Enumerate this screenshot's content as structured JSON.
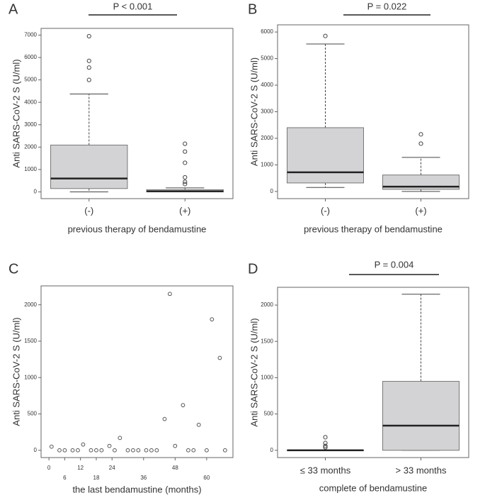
{
  "chart_data": [
    {
      "type": "box",
      "panel_label": "A",
      "annotation": "P < 0.001",
      "ylabel": "Anti  SARS-CoV-2 S (U/ml)",
      "xlabel": "previous therapy of bendamustine",
      "categories": [
        "(-)",
        "(+)"
      ],
      "color": "#d3d3d6",
      "boxes": [
        {
          "min": 0,
          "q1": 150,
          "median": 600,
          "q3": 2090,
          "max": 4370,
          "outliers": [
            6950,
            5850,
            5550,
            5000
          ]
        },
        {
          "min": 0,
          "q1": 0,
          "median": 30,
          "q3": 100,
          "max": 180,
          "outliers": [
            2150,
            1800,
            1300,
            650,
            450,
            350
          ]
        }
      ],
      "ylim": [
        -300,
        7300
      ],
      "yticks": [
        0,
        1000,
        2000,
        3000,
        4000,
        5000,
        6000,
        7000
      ]
    },
    {
      "type": "box",
      "panel_label": "B",
      "annotation": "P = 0.022",
      "ylabel": "Anti  SARS-CoV-2 S (U/ml)",
      "xlabel": "previous therapy of bendamustine",
      "categories": [
        "(-)",
        "(+)"
      ],
      "color": "#d3d3d6",
      "boxes": [
        {
          "min": 150,
          "q1": 320,
          "median": 720,
          "q3": 2400,
          "max": 5550,
          "outliers": [
            5850
          ]
        },
        {
          "min": 0,
          "q1": 80,
          "median": 180,
          "q3": 620,
          "max": 1280,
          "outliers": [
            2150,
            1800
          ]
        }
      ],
      "ylim": [
        -270,
        6270
      ],
      "yticks": [
        0,
        1000,
        2000,
        3000,
        4000,
        5000,
        6000
      ]
    },
    {
      "type": "scatter",
      "panel_label": "C",
      "ylabel": "Anti  SARS-CoV-2 S (U/ml)",
      "xlabel": "the last bendamustine (months)",
      "x": [
        1,
        4,
        6,
        9,
        11,
        13,
        16,
        18,
        20,
        23,
        25,
        27,
        30,
        32,
        34,
        37,
        39,
        41,
        44,
        46,
        48,
        51,
        53,
        55,
        57,
        60,
        62,
        65,
        67
      ],
      "values": [
        50,
        0,
        0,
        0,
        0,
        80,
        0,
        0,
        0,
        60,
        0,
        170,
        0,
        0,
        0,
        0,
        0,
        0,
        430,
        2150,
        60,
        620,
        0,
        0,
        350,
        0,
        1800,
        1270,
        0
      ],
      "xlim": [
        -3,
        70
      ],
      "xticks": [
        0,
        6,
        12,
        18,
        24,
        36,
        48,
        60
      ],
      "ylim": [
        -100,
        2260
      ],
      "yticks": [
        0,
        500,
        1000,
        1500,
        2000
      ],
      "color": "#555555"
    },
    {
      "type": "box",
      "panel_label": "D",
      "annotation": "P = 0.004",
      "ylabel": "Anti  SARS-CoV-2 S (U/ml)",
      "xlabel": "complete of bendamustine",
      "categories": [
        "≤ 33 months",
        "> 33 months"
      ],
      "color": "#d3d3d6",
      "boxes": [
        {
          "min": 0,
          "q1": 0,
          "median": 0,
          "q3": 0,
          "max": 0,
          "outliers": [
            180,
            100,
            60,
            40
          ]
        },
        {
          "min": 0,
          "q1": 0,
          "median": 340,
          "q3": 950,
          "max": 2150,
          "outliers": []
        }
      ],
      "ylim": [
        -100,
        2245
      ],
      "yticks": [
        0,
        500,
        1000,
        1500,
        2000
      ]
    }
  ]
}
